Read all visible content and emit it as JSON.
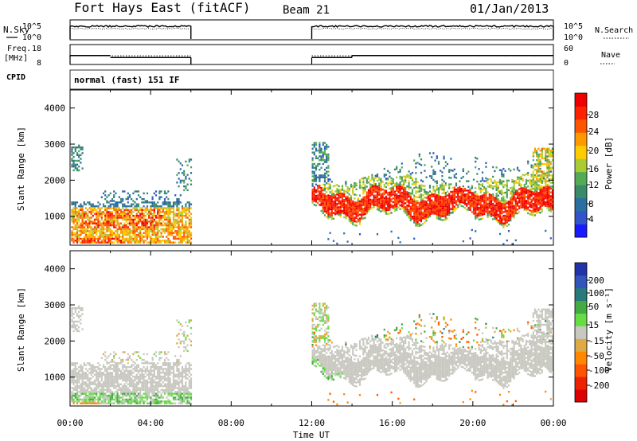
{
  "header": {
    "station": "Fort Hays East (fitACF)",
    "beam": "Beam 21",
    "date": "01/Jan/2013"
  },
  "side_labels": {
    "nsky": "N.Sky",
    "nsearch": "N.Search",
    "freq_a": "Freq.",
    "freq_b": "[MHz]",
    "nave": "Nave",
    "cpid": "CPID",
    "cpid_value": "normal (fast) 151 IF",
    "xlabel": "Time UT"
  },
  "noise_ticks": {
    "left": [
      "10^5",
      "10^0"
    ],
    "right": [
      "10^5",
      "10^0"
    ]
  },
  "freq_ticks": {
    "left": [
      "18",
      "8"
    ],
    "right": [
      "60",
      "0"
    ]
  },
  "chart_data": [
    {
      "type": "line",
      "name": "noise",
      "x": [
        0,
        6,
        12,
        24
      ],
      "segments": [
        [
          0,
          6
        ],
        [
          12,
          24
        ]
      ],
      "ylabel_left": "N.Sky",
      "ylabel_right": "N.Search"
    },
    {
      "type": "line",
      "name": "frequency",
      "ylabel_left": "Freq. [MHz]",
      "ylabel_right": "Nave",
      "ylim_left": [
        8,
        18
      ],
      "ylim_right": [
        0,
        60
      ],
      "freq_steps": [
        [
          0,
          2,
          12.5
        ],
        [
          2,
          6,
          11.5
        ],
        [
          12,
          14,
          11.5
        ],
        [
          14,
          24,
          12.5
        ]
      ],
      "nave_steps": [
        [
          0,
          6,
          26
        ],
        [
          12,
          24,
          26
        ]
      ]
    },
    {
      "type": "heatmap",
      "name": "power",
      "xlabel": "Time UT",
      "ylabel": "Slant Range [km]",
      "xlim": [
        0,
        24
      ],
      "ylim": [
        200,
        4500
      ],
      "xticks": [
        "00:00",
        "04:00",
        "08:00",
        "12:00",
        "16:00",
        "20:00",
        "00:00"
      ],
      "yticks": [
        1000,
        2000,
        3000,
        4000
      ],
      "colorbar": {
        "label": "Power [dB]",
        "ticks": [
          "4",
          "8",
          "12",
          "16",
          "20",
          "24",
          "28"
        ],
        "colors": [
          "#1a1aff",
          "#3355cc",
          "#2a6fa0",
          "#3a8a6a",
          "#55aa55",
          "#aacc33",
          "#ffcc00",
          "#ff9900",
          "#ff5500",
          "#ff2200",
          "#ee0000"
        ]
      }
    },
    {
      "type": "heatmap",
      "name": "velocity",
      "xlabel": "Time UT",
      "ylabel": "Slant Range [km]",
      "xlim": [
        0,
        24
      ],
      "ylim": [
        200,
        4500
      ],
      "xticks": [
        "00:00",
        "04:00",
        "08:00",
        "12:00",
        "16:00",
        "20:00",
        "00:00"
      ],
      "yticks": [
        1000,
        2000,
        3000,
        4000
      ],
      "colorbar": {
        "label": "Velocity [m s⁻¹]",
        "ticks": [
          "200",
          "100",
          "50",
          "15",
          "-15",
          "-50",
          "-100",
          "-200"
        ],
        "colors": [
          "#2233aa",
          "#3355bb",
          "#2a7a7a",
          "#44aa44",
          "#66dd44",
          "#c8c8c0",
          "#ddaa44",
          "#ff8800",
          "#ff5500",
          "#ee2200",
          "#dd0000"
        ]
      }
    }
  ]
}
